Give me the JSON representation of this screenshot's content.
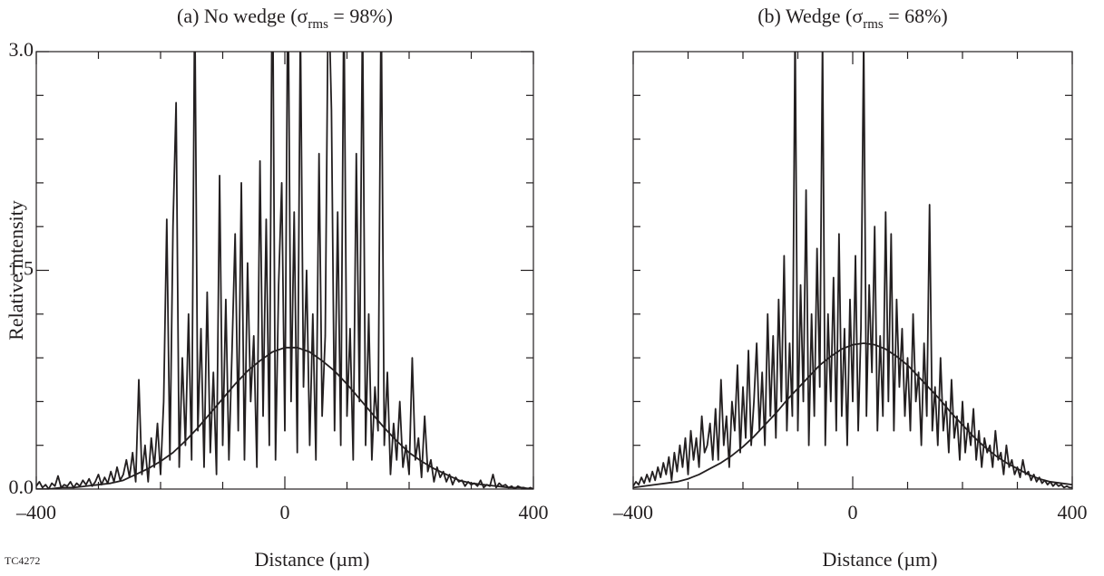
{
  "chart_data": [
    {
      "type": "line",
      "title_prefix": "(a)  No wedge (σ",
      "title_sub": "rms",
      "title_suffix": " = 98%)",
      "xlabel": "Distance (µm)",
      "ylabel": "Relative intensity",
      "xlim": [
        -400,
        400
      ],
      "ylim": [
        0,
        3
      ],
      "xticks": [
        {
          "value": -400,
          "label": "–400"
        },
        0,
        400
      ],
      "yticks": [
        {
          "value": 0,
          "label": "0.0"
        },
        1.5,
        {
          "value": 3,
          "label": "3.0"
        }
      ],
      "xminorticks": [
        -300,
        -200,
        -100,
        100,
        200,
        300
      ],
      "yminorticks": [
        0.3,
        0.6,
        0.9,
        1.2,
        1.8,
        2.1,
        2.4,
        2.7
      ],
      "series": [
        {
          "color": "#231f20",
          "x": [
            -400,
            -395,
            -390,
            -385,
            -380,
            -375,
            -370,
            -365,
            -360,
            -355,
            -350,
            -345,
            -340,
            -335,
            -330,
            -325,
            -320,
            -315,
            -310,
            -305,
            -300,
            -295,
            -290,
            -285,
            -280,
            -275,
            -270,
            -265,
            -260,
            -255,
            -250,
            -245,
            -240,
            -235,
            -230,
            -225,
            -220,
            -215,
            -210,
            -205,
            -200,
            -195,
            -190,
            -185,
            -180,
            -175,
            -170,
            -165,
            -160,
            -155,
            -150,
            -145,
            -140,
            -135,
            -130,
            -125,
            -120,
            -115,
            -110,
            -105,
            -100,
            -95,
            -90,
            -85,
            -80,
            -75,
            -70,
            -65,
            -60,
            -55,
            -50,
            -45,
            -40,
            -35,
            -30,
            -25,
            -20,
            -15,
            -10,
            -5,
            0,
            5,
            10,
            15,
            20,
            25,
            30,
            35,
            40,
            45,
            50,
            55,
            60,
            65,
            70,
            75,
            80,
            85,
            90,
            95,
            100,
            105,
            110,
            115,
            120,
            125,
            130,
            135,
            140,
            145,
            150,
            155,
            160,
            165,
            170,
            175,
            180,
            185,
            190,
            195,
            200,
            205,
            210,
            215,
            220,
            225,
            230,
            235,
            240,
            245,
            250,
            255,
            260,
            265,
            270,
            275,
            280,
            285,
            290,
            295,
            300,
            305,
            310,
            315,
            320,
            325,
            330,
            335,
            340,
            345,
            350,
            355,
            360,
            365,
            370,
            375,
            380,
            385,
            390,
            395,
            400
          ],
          "values": [
            0.02,
            0.05,
            0.01,
            0.03,
            0.0,
            0.04,
            0.02,
            0.09,
            0.01,
            0.03,
            0.02,
            0.05,
            0.01,
            0.04,
            0.02,
            0.06,
            0.03,
            0.07,
            0.02,
            0.05,
            0.1,
            0.03,
            0.08,
            0.04,
            0.12,
            0.05,
            0.15,
            0.06,
            0.1,
            0.2,
            0.08,
            0.25,
            0.05,
            0.75,
            0.1,
            0.3,
            0.05,
            0.35,
            0.15,
            0.45,
            0.1,
            0.6,
            1.85,
            0.2,
            1.8,
            2.65,
            0.15,
            0.9,
            0.3,
            1.2,
            0.2,
            3.4,
            0.4,
            1.1,
            0.15,
            1.35,
            0.25,
            0.8,
            0.1,
            2.15,
            0.3,
            1.3,
            0.2,
            0.95,
            1.75,
            0.4,
            2.1,
            0.2,
            1.55,
            0.6,
            1.05,
            0.15,
            2.25,
            0.5,
            1.85,
            0.3,
            3.8,
            0.2,
            1.4,
            2.1,
            0.4,
            3.6,
            0.6,
            1.9,
            0.25,
            3.2,
            0.7,
            1.5,
            0.3,
            1.2,
            0.2,
            2.3,
            0.5,
            1.05,
            3.5,
            2.6,
            0.4,
            1.9,
            0.3,
            3.4,
            0.5,
            1.1,
            0.2,
            2.3,
            0.6,
            3.3,
            0.3,
            1.2,
            0.2,
            0.7,
            0.4,
            3.4,
            0.3,
            0.8,
            0.1,
            0.45,
            0.2,
            0.6,
            0.15,
            0.3,
            0.1,
            0.9,
            0.2,
            0.35,
            0.08,
            0.5,
            0.12,
            0.2,
            0.05,
            0.15,
            0.08,
            0.12,
            0.05,
            0.1,
            0.03,
            0.08,
            0.05,
            0.06,
            0.02,
            0.05,
            0.03,
            0.04,
            0.02,
            0.06,
            0.01,
            0.03,
            0.02,
            0.1,
            0.01,
            0.04,
            0.02,
            0.03,
            0.01,
            0.02,
            0.0,
            0.02,
            0.01,
            0.01,
            0.0,
            0.01,
            0.0
          ]
        },
        {
          "color": "#231f20",
          "x": [
            -400,
            -380,
            -360,
            -340,
            -320,
            -300,
            -280,
            -260,
            -240,
            -220,
            -200,
            -180,
            -160,
            -140,
            -120,
            -100,
            -80,
            -60,
            -40,
            -20,
            0,
            20,
            40,
            60,
            80,
            100,
            120,
            140,
            160,
            180,
            200,
            220,
            240,
            260,
            280,
            300,
            320,
            340,
            360,
            380,
            400
          ],
          "values": [
            0.0,
            0.0,
            0.01,
            0.01,
            0.02,
            0.03,
            0.04,
            0.06,
            0.1,
            0.14,
            0.19,
            0.25,
            0.33,
            0.42,
            0.52,
            0.62,
            0.72,
            0.81,
            0.88,
            0.94,
            0.97,
            0.97,
            0.94,
            0.88,
            0.81,
            0.72,
            0.62,
            0.52,
            0.42,
            0.33,
            0.25,
            0.19,
            0.14,
            0.1,
            0.06,
            0.04,
            0.03,
            0.02,
            0.01,
            0.01,
            0.0
          ]
        }
      ]
    },
    {
      "type": "line",
      "title_prefix": "(b)  Wedge (σ",
      "title_sub": "rms",
      "title_suffix": " = 68%)",
      "xlabel": "Distance (µm)",
      "xlim": [
        -400,
        400
      ],
      "ylim": [
        0,
        3
      ],
      "xticks": [
        {
          "value": -400,
          "label": "–400"
        },
        0,
        400
      ],
      "xminorticks": [
        -300,
        -200,
        -100,
        100,
        200,
        300
      ],
      "yminorticks": [
        0.3,
        0.6,
        0.9,
        1.2,
        1.5,
        1.8,
        2.1,
        2.4,
        2.7
      ],
      "series": [
        {
          "color": "#231f20",
          "x": [
            -400,
            -395,
            -390,
            -385,
            -380,
            -375,
            -370,
            -365,
            -360,
            -355,
            -350,
            -345,
            -340,
            -335,
            -330,
            -325,
            -320,
            -315,
            -310,
            -305,
            -300,
            -295,
            -290,
            -285,
            -280,
            -275,
            -270,
            -265,
            -260,
            -255,
            -250,
            -245,
            -240,
            -235,
            -230,
            -225,
            -220,
            -215,
            -210,
            -205,
            -200,
            -195,
            -190,
            -185,
            -180,
            -175,
            -170,
            -165,
            -160,
            -155,
            -150,
            -145,
            -140,
            -135,
            -130,
            -125,
            -120,
            -115,
            -110,
            -105,
            -100,
            -95,
            -90,
            -85,
            -80,
            -75,
            -70,
            -65,
            -60,
            -55,
            -50,
            -45,
            -40,
            -35,
            -30,
            -25,
            -20,
            -15,
            -10,
            -5,
            0,
            5,
            10,
            15,
            20,
            25,
            30,
            35,
            40,
            45,
            50,
            55,
            60,
            65,
            70,
            75,
            80,
            85,
            90,
            95,
            100,
            105,
            110,
            115,
            120,
            125,
            130,
            135,
            140,
            145,
            150,
            155,
            160,
            165,
            170,
            175,
            180,
            185,
            190,
            195,
            200,
            205,
            210,
            215,
            220,
            225,
            230,
            235,
            240,
            245,
            250,
            255,
            260,
            265,
            270,
            275,
            280,
            285,
            290,
            295,
            300,
            305,
            310,
            315,
            320,
            325,
            330,
            335,
            340,
            345,
            350,
            355,
            360,
            365,
            370,
            375,
            380,
            385,
            390,
            395,
            400
          ],
          "values": [
            0.02,
            0.05,
            0.03,
            0.08,
            0.04,
            0.1,
            0.05,
            0.12,
            0.06,
            0.15,
            0.08,
            0.18,
            0.1,
            0.22,
            0.06,
            0.25,
            0.12,
            0.3,
            0.15,
            0.35,
            0.1,
            0.4,
            0.2,
            0.35,
            0.15,
            0.5,
            0.25,
            0.3,
            0.45,
            0.2,
            0.55,
            0.2,
            0.75,
            0.3,
            0.5,
            0.15,
            0.6,
            0.4,
            0.85,
            0.25,
            0.7,
            0.35,
            0.95,
            0.3,
            0.6,
            1.0,
            0.4,
            0.8,
            0.3,
            1.2,
            0.5,
            1.05,
            0.35,
            1.3,
            0.6,
            1.6,
            0.4,
            1.0,
            0.5,
            3.2,
            0.4,
            1.4,
            0.6,
            2.05,
            0.3,
            1.2,
            0.5,
            1.65,
            0.7,
            3.1,
            0.3,
            1.2,
            0.6,
            1.45,
            0.4,
            1.75,
            0.5,
            1.1,
            0.3,
            1.3,
            0.6,
            1.6,
            0.4,
            1.1,
            3.1,
            0.5,
            1.4,
            0.8,
            1.8,
            0.4,
            1.05,
            0.5,
            1.9,
            0.6,
            1.75,
            0.4,
            1.3,
            0.7,
            1.1,
            0.5,
            0.9,
            0.4,
            1.2,
            0.6,
            0.8,
            0.3,
            1.0,
            0.5,
            1.95,
            0.4,
            0.7,
            0.3,
            0.9,
            0.4,
            0.6,
            0.25,
            0.75,
            0.35,
            0.5,
            0.2,
            0.6,
            0.25,
            0.45,
            0.3,
            0.55,
            0.2,
            0.4,
            0.15,
            0.35,
            0.25,
            0.3,
            0.15,
            0.4,
            0.2,
            0.25,
            0.1,
            0.3,
            0.15,
            0.2,
            0.1,
            0.15,
            0.08,
            0.2,
            0.1,
            0.12,
            0.06,
            0.1,
            0.05,
            0.08,
            0.04,
            0.06,
            0.03,
            0.05,
            0.02,
            0.04,
            0.02,
            0.03,
            0.01,
            0.02,
            0.01,
            0.01
          ]
        },
        {
          "color": "#231f20",
          "x": [
            -400,
            -380,
            -360,
            -340,
            -320,
            -300,
            -280,
            -260,
            -240,
            -220,
            -200,
            -180,
            -160,
            -140,
            -120,
            -100,
            -80,
            -60,
            -40,
            -20,
            0,
            20,
            40,
            60,
            80,
            100,
            120,
            140,
            160,
            180,
            200,
            220,
            240,
            260,
            280,
            300,
            320,
            340,
            360,
            380,
            400
          ],
          "values": [
            0.01,
            0.02,
            0.03,
            0.04,
            0.05,
            0.07,
            0.1,
            0.14,
            0.18,
            0.23,
            0.29,
            0.36,
            0.44,
            0.52,
            0.61,
            0.69,
            0.77,
            0.85,
            0.91,
            0.96,
            0.99,
            1.0,
            0.99,
            0.96,
            0.91,
            0.85,
            0.77,
            0.69,
            0.61,
            0.52,
            0.44,
            0.36,
            0.29,
            0.23,
            0.18,
            0.14,
            0.1,
            0.07,
            0.05,
            0.04,
            0.03
          ]
        }
      ]
    }
  ],
  "annotation": "TC4272"
}
